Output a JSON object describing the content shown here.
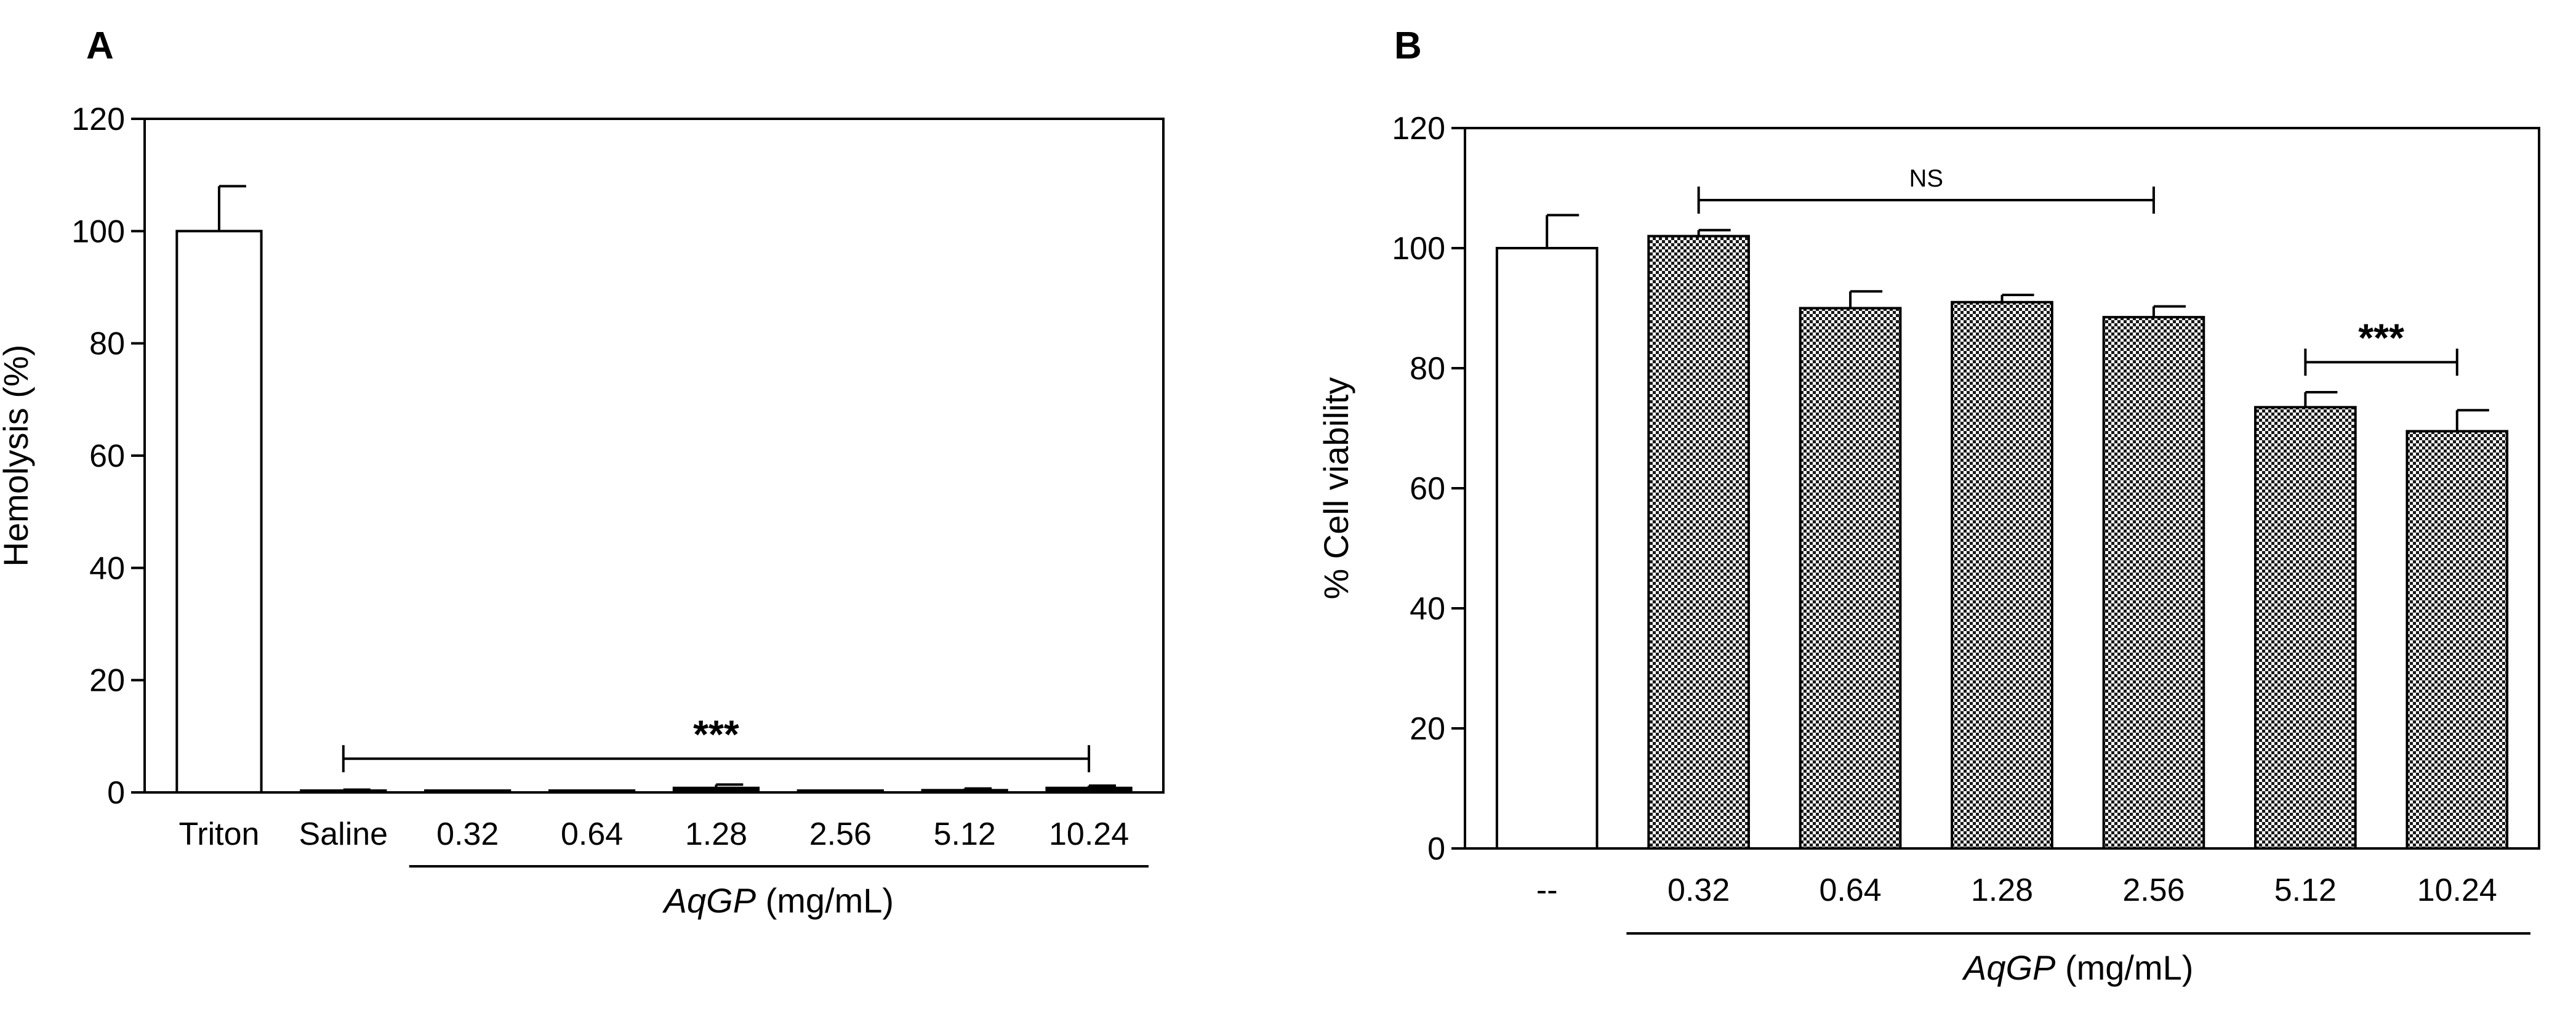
{
  "chart_data": [
    {
      "panel": "A",
      "type": "bar",
      "ylabel": "Hemolysis (%)",
      "xlabel_italic": "AqGP",
      "xlabel_rest": " (mg/mL)",
      "ylim": [
        0,
        120
      ],
      "yticks": [
        0,
        20,
        40,
        60,
        80,
        100,
        120
      ],
      "categories": [
        "Triton",
        "Saline",
        "0.32",
        "0.64",
        "1.28",
        "2.56",
        "5.12",
        "10.24"
      ],
      "values": [
        100,
        0.2,
        0.3,
        0.3,
        0.8,
        0.3,
        0.4,
        0.8
      ],
      "errors": [
        8,
        0.3,
        0.2,
        0.2,
        0.6,
        0.2,
        0.3,
        0.4
      ],
      "fills": [
        "white",
        "black",
        "black",
        "black",
        "black",
        "black",
        "black",
        "black"
      ],
      "significance": [
        {
          "label": "***",
          "from": 1,
          "to": 7
        }
      ],
      "group_underline": {
        "from": 2,
        "to": 7
      }
    },
    {
      "panel": "B",
      "type": "bar",
      "ylabel": "% Cell viability",
      "xlabel_italic": "AqGP",
      "xlabel_rest": " (mg/mL)",
      "ylim": [
        0,
        120
      ],
      "yticks": [
        0,
        20,
        40,
        60,
        80,
        100,
        120
      ],
      "categories": [
        "--",
        "0.32",
        "0.64",
        "1.28",
        "2.56",
        "5.12",
        "10.24"
      ],
      "values": [
        100,
        102,
        90,
        91,
        88.5,
        73.5,
        69.5
      ],
      "errors": [
        5.5,
        1,
        2.8,
        1.2,
        1.8,
        2.5,
        3.5
      ],
      "fills": [
        "white",
        "checker",
        "checker",
        "checker",
        "checker",
        "checker",
        "checker"
      ],
      "significance": [
        {
          "label": "NS",
          "from": 1,
          "to": 4
        },
        {
          "label": "***",
          "from": 5,
          "to": 6
        }
      ],
      "group_underline": {
        "from": 1,
        "to": 6
      }
    }
  ]
}
